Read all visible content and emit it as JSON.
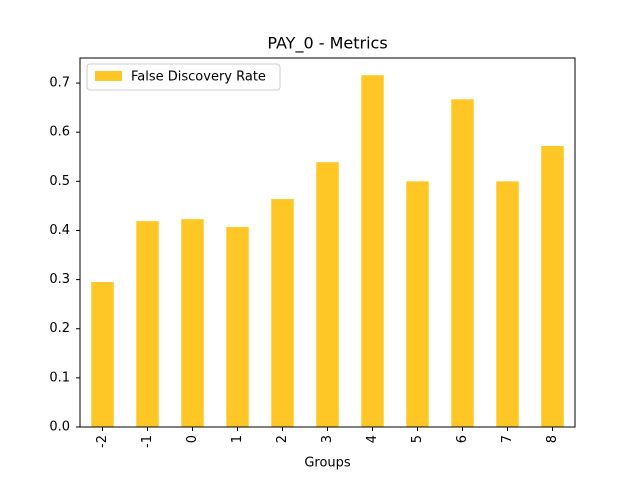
{
  "chart_data": {
    "type": "bar",
    "title": "PAY_0 - Metrics",
    "xlabel": "Groups",
    "categories": [
      "-2",
      "-1",
      "0",
      "1",
      "2",
      "3",
      "4",
      "5",
      "6",
      "7",
      "8"
    ],
    "series": [
      {
        "name": "False Discovery Rate",
        "color": "#ffc726",
        "values": [
          0.295,
          0.419,
          0.423,
          0.407,
          0.464,
          0.539,
          0.716,
          0.5,
          0.667,
          0.5,
          0.572
        ]
      }
    ],
    "ylim": [
      0,
      0.751
    ],
    "yticks": [
      {
        "value": 0,
        "label": "0.0"
      },
      0.1,
      0.2,
      0.3,
      0.4,
      0.5,
      0.6,
      0.7
    ],
    "legend": "upper left",
    "grid": false
  }
}
